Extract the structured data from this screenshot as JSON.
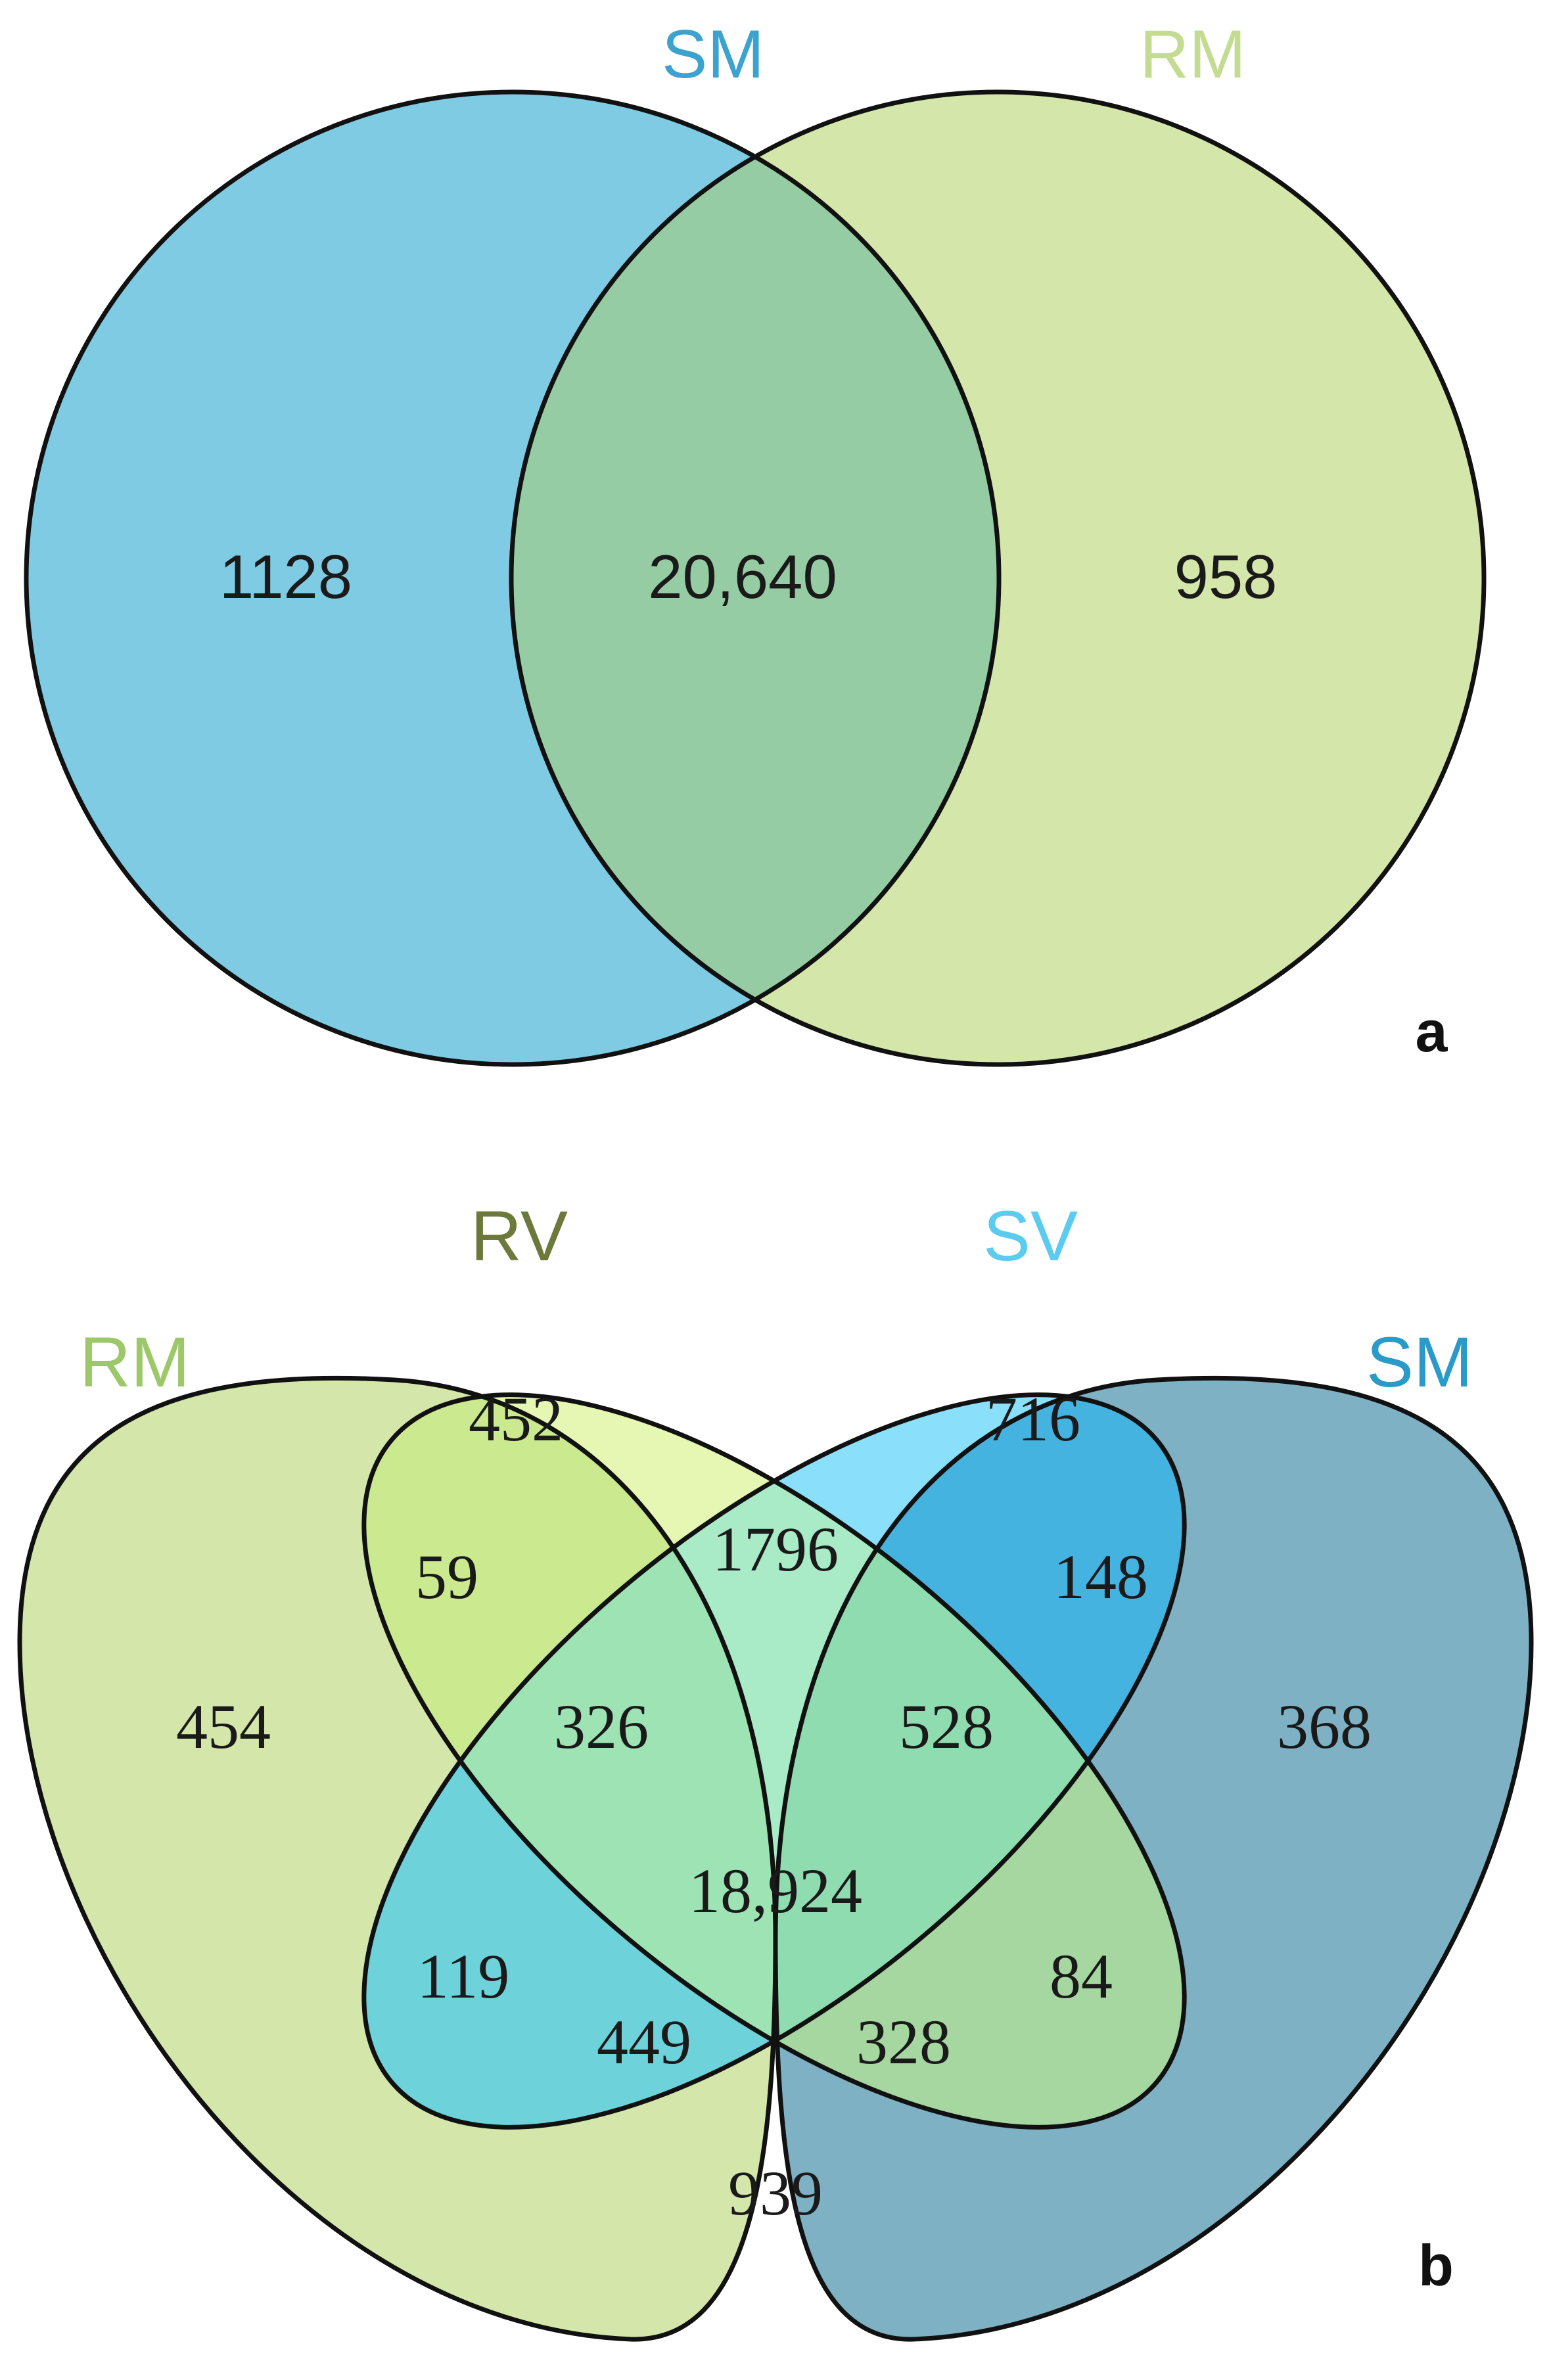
{
  "panel_a": {
    "panel_label": "a",
    "sets": {
      "SM": {
        "label": "SM",
        "fill": "#7FCBE4",
        "label_color": "#3BA3CE"
      },
      "RM": {
        "label": "RM",
        "fill": "#D5E6AA",
        "label_color": "#C4DC92"
      }
    },
    "intersection_fill": "#96CCA4",
    "counts": {
      "SM_only": "1128",
      "SM_RM": "20,640",
      "RM_only": "958"
    }
  },
  "panel_b": {
    "panel_label": "b",
    "sets": {
      "RM": {
        "label": "RM",
        "fill": "#D4E6AA",
        "label_color": "#9DC86A"
      },
      "RV": {
        "label": "RV",
        "fill": "#E6F7B4",
        "label_color": "#6B7A3A"
      },
      "SV": {
        "label": "SV",
        "fill": "#8ADFFA",
        "label_color": "#5BCBF0"
      },
      "SM": {
        "label": "SM",
        "fill": "#7FB1C5",
        "label_color": "#2A9AC8"
      }
    },
    "region_fills": {
      "RM_RV": "#CBE98E",
      "RV_SV": "#A8EBC6",
      "SV_SM": "#44B3E0",
      "RM_SV": "#6DD2DA",
      "RV_SM": "#A6D7A0",
      "RM_SM": "#93C196",
      "RM_RV_SV": "#9DE3B4",
      "RV_SV_SM": "#8FDCB0",
      "RM_SV_SM": "#3FBACB",
      "RM_RV_SM": "#C4E688",
      "all": "#8FDFA0"
    },
    "counts": {
      "RM_only": "454",
      "RV_only": "452",
      "SV_only": "716",
      "SM_only": "368",
      "RM_RV": "59",
      "RV_SV": "1796",
      "SV_SM": "148",
      "RM_SV_SM": "449",
      "RM_RV_SV": "326",
      "RV_SV_SM": "528",
      "all": "18,924",
      "RM_SV": "119",
      "RV_SM": "84",
      "RM_RV_SM": "328",
      "RM_SM": "939"
    }
  }
}
